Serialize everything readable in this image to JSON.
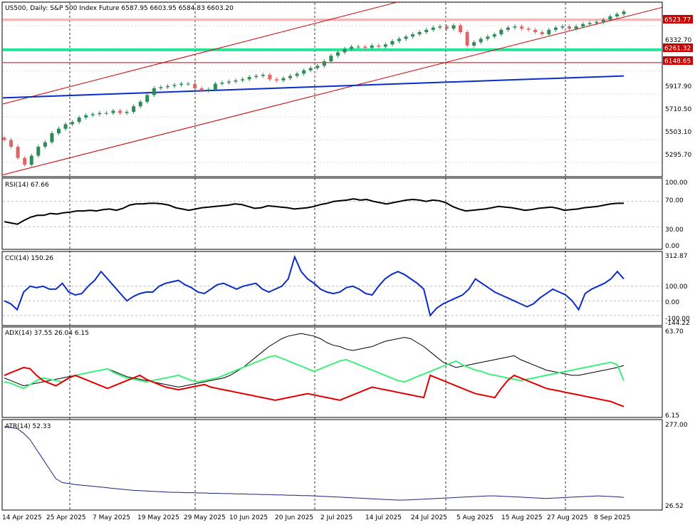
{
  "header": {
    "title": "US500, Daily:  S&P 500  Index Future  6587.95 6603.95 6584.83 6603.20"
  },
  "x_axis": {
    "labels": [
      "14 Apr 2025",
      "25 Apr 2025",
      "7 May 2025",
      "19 May 2025",
      "29 May 2025",
      "10 Jun 2025",
      "20 Jun 2025",
      "2 Jul 2025",
      "14 Jul 2025",
      "24 Jul 2025",
      "5 Aug 2025",
      "15 Aug 2025",
      "27 Aug 2025",
      "8 Sep 2025"
    ]
  },
  "colors": {
    "bull": "#2e8b57",
    "bear": "#e06666",
    "channel": "#cc0000",
    "trend": "#0a2cc8",
    "green_zone": "#00e08a",
    "rsi": "#000000",
    "cci": "#0a2cc8",
    "adx": "#000000",
    "plus_di": "#3cf07a",
    "minus_di": "#e00000",
    "atr": "#1a237e"
  },
  "chart_data": [
    {
      "type": "candlestick",
      "title": "US500, Daily:  S&P 500  Index Future  6587.95 6603.95 6584.83 6603.20",
      "ylim": [
        5140,
        6680
      ],
      "yticks": [
        "5295.70",
        "5503.10",
        "5710.50",
        "5917.90",
        "6332.70"
      ],
      "level_tags": [
        "6523.77",
        "6261.32",
        "6148.65"
      ],
      "series": [
        {
          "name": "price",
          "values": [
            5460,
            5400,
            5300,
            5240,
            5320,
            5400,
            5440,
            5520,
            5560,
            5600,
            5620,
            5660,
            5680,
            5690,
            5700,
            5700,
            5720,
            5700,
            5710,
            5760,
            5800,
            5860,
            5920,
            5930,
            5940,
            5950,
            5960,
            5960,
            5920,
            5900,
            5910,
            5960,
            5970,
            5980,
            5990,
            6000,
            6020,
            6030,
            6040,
            6000,
            5990,
            6010,
            6030,
            6050,
            6080,
            6100,
            6120,
            6160,
            6210,
            6240,
            6270,
            6290,
            6290,
            6280,
            6300,
            6290,
            6310,
            6340,
            6360,
            6380,
            6400,
            6420,
            6440,
            6460,
            6470,
            6450,
            6480,
            6420,
            6300,
            6330,
            6360,
            6380,
            6400,
            6440,
            6460,
            6470,
            6450,
            6440,
            6420,
            6400,
            6440,
            6460,
            6470,
            6450,
            6470,
            6490,
            6500,
            6510,
            6530,
            6560,
            6580,
            6603
          ]
        }
      ]
    },
    {
      "type": "line",
      "title": "RSI(14) 67.66",
      "ylim": [
        0,
        100
      ],
      "yticks": [
        "100.00",
        "70.00",
        "30.00",
        "0.00"
      ],
      "series": [
        {
          "name": "RSI",
          "values": [
            38,
            36,
            34,
            40,
            45,
            48,
            48,
            51,
            50,
            52,
            53,
            55,
            55,
            56,
            55,
            57,
            58,
            56,
            59,
            64,
            66,
            66,
            67,
            67,
            66,
            64,
            60,
            58,
            56,
            58,
            60,
            61,
            62,
            63,
            64,
            66,
            65,
            62,
            59,
            60,
            63,
            62,
            61,
            60,
            58,
            59,
            60,
            62,
            65,
            67,
            70,
            71,
            72,
            74,
            72,
            73,
            70,
            68,
            66,
            68,
            70,
            72,
            73,
            72,
            70,
            72,
            71,
            68,
            62,
            58,
            55,
            56,
            57,
            58,
            60,
            62,
            61,
            60,
            58,
            56,
            57,
            59,
            60,
            61,
            59,
            56,
            57,
            58,
            60,
            61,
            62,
            64,
            66,
            67,
            67
          ]
        }
      ]
    },
    {
      "type": "line",
      "title": "CCI(14) 150.26",
      "ylim": [
        -144.22,
        312.87
      ],
      "yticks": [
        "312.87",
        "100.00",
        "0.00",
        "-100.00",
        "-144.22"
      ],
      "series": [
        {
          "name": "CCI",
          "values": [
            0,
            -20,
            -60,
            60,
            100,
            90,
            100,
            80,
            80,
            120,
            60,
            40,
            50,
            100,
            140,
            200,
            150,
            100,
            50,
            0,
            30,
            50,
            60,
            60,
            100,
            120,
            130,
            140,
            110,
            90,
            60,
            50,
            80,
            110,
            120,
            100,
            80,
            100,
            110,
            120,
            80,
            60,
            80,
            100,
            150,
            300,
            200,
            150,
            120,
            80,
            60,
            50,
            60,
            90,
            100,
            80,
            50,
            40,
            100,
            150,
            180,
            200,
            180,
            150,
            120,
            80,
            -100,
            -50,
            -20,
            0,
            20,
            40,
            80,
            150,
            120,
            90,
            60,
            40,
            20,
            0,
            -20,
            -40,
            -20,
            20,
            50,
            80,
            60,
            40,
            0,
            -60,
            50,
            80,
            100,
            120,
            150,
            200,
            150
          ]
        }
      ]
    },
    {
      "type": "line",
      "title": "ADX(14) 37.55 26.04 6.15",
      "ylim": [
        0,
        63.7
      ],
      "yticks": [
        "63.70",
        "6.15"
      ],
      "series": [
        {
          "name": "ADX",
          "values": [
            28,
            26,
            24,
            22,
            23,
            24,
            25,
            26,
            27,
            28,
            29,
            30,
            31,
            32,
            33,
            34,
            35,
            33,
            31,
            29,
            28,
            27,
            26,
            25,
            24,
            23,
            22,
            21,
            22,
            23,
            24,
            25,
            26,
            27,
            28,
            30,
            33,
            36,
            40,
            44,
            48,
            52,
            55,
            58,
            60,
            61,
            62,
            61,
            60,
            58,
            55,
            53,
            52,
            50,
            49,
            50,
            51,
            52,
            54,
            56,
            57,
            58,
            59,
            58,
            55,
            52,
            48,
            44,
            40,
            38,
            36,
            37,
            38,
            39,
            40,
            41,
            42,
            43,
            44,
            45,
            42,
            40,
            38,
            36,
            34,
            33,
            32,
            31,
            30,
            30,
            31,
            32,
            33,
            34,
            35,
            36,
            37.55
          ]
        },
        {
          "name": "+DI",
          "values": [
            25,
            24,
            22,
            20,
            23,
            26,
            28,
            27,
            26,
            25,
            28,
            30,
            31,
            32,
            33,
            34,
            35,
            32,
            30,
            28,
            27,
            26,
            25,
            26,
            27,
            28,
            29,
            30,
            28,
            26,
            25,
            26,
            27,
            28,
            30,
            32,
            34,
            36,
            38,
            40,
            42,
            44,
            45,
            43,
            41,
            39,
            37,
            35,
            33,
            35,
            37,
            39,
            41,
            42,
            40,
            38,
            36,
            34,
            32,
            30,
            28,
            26,
            25,
            27,
            29,
            31,
            33,
            35,
            37,
            39,
            41,
            38,
            36,
            34,
            33,
            31,
            30,
            29,
            28,
            27,
            26,
            27,
            28,
            29,
            30,
            31,
            32,
            33,
            34,
            35,
            36,
            37,
            38,
            39,
            40,
            38,
            26.04
          ]
        },
        {
          "name": "-DI",
          "values": [
            30,
            32,
            34,
            36,
            35,
            30,
            26,
            24,
            22,
            25,
            28,
            30,
            28,
            26,
            24,
            22,
            20,
            22,
            24,
            26,
            28,
            30,
            27,
            25,
            23,
            21,
            20,
            19,
            20,
            21,
            22,
            23,
            21,
            20,
            19,
            18,
            17,
            16,
            15,
            14,
            13,
            12,
            11,
            12,
            13,
            14,
            15,
            16,
            15,
            14,
            13,
            12,
            11,
            13,
            15,
            17,
            19,
            21,
            20,
            19,
            18,
            17,
            16,
            15,
            14,
            13,
            30,
            28,
            26,
            24,
            22,
            20,
            18,
            16,
            15,
            14,
            13,
            20,
            26,
            30,
            28,
            26,
            24,
            22,
            20,
            19,
            18,
            17,
            16,
            15,
            14,
            13,
            12,
            11,
            10,
            8,
            6.15
          ]
        }
      ]
    },
    {
      "type": "line",
      "title": "ATR(14) 52.33",
      "ylim": [
        26.52,
        277
      ],
      "yticks": [
        "277.00",
        "26.52"
      ],
      "series": [
        {
          "name": "ATR",
          "values": [
            270,
            268,
            265,
            250,
            230,
            200,
            170,
            140,
            110,
            98,
            95,
            92,
            90,
            88,
            86,
            84,
            82,
            80,
            78,
            76,
            74,
            73,
            72,
            71,
            70,
            69,
            68,
            68,
            67,
            67,
            66,
            66,
            65,
            65,
            64,
            64,
            63,
            63,
            62,
            62,
            61,
            61,
            60,
            60,
            59,
            59,
            58,
            58,
            57,
            56,
            55,
            54,
            53,
            52,
            51,
            50,
            49,
            48,
            47,
            46,
            45,
            44,
            44,
            45,
            46,
            47,
            48,
            49,
            50,
            51,
            52,
            53,
            54,
            55,
            56,
            57,
            57,
            56,
            55,
            54,
            53,
            52,
            51,
            50,
            49,
            50,
            51,
            52,
            53,
            54,
            55,
            56,
            57,
            56,
            55,
            54,
            52.33
          ]
        }
      ]
    }
  ]
}
